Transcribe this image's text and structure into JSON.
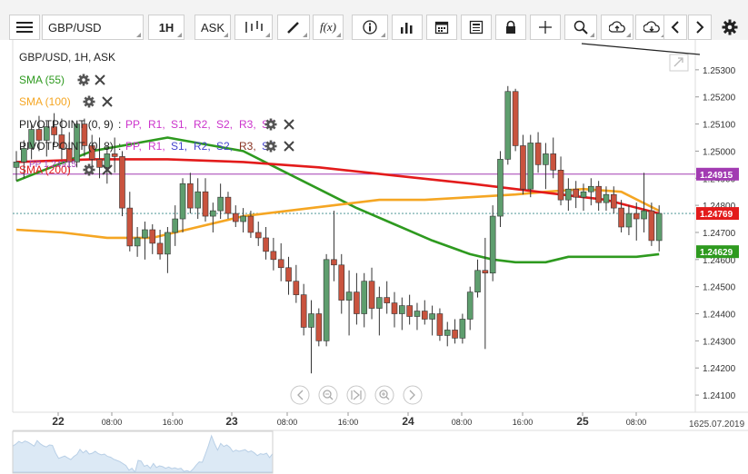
{
  "toolbar": {
    "menu_icon": "hamburger-menu-icon",
    "symbol": "GBP/USD",
    "timeframe": "1H",
    "price_side": "ASK",
    "fx_label": "f(x)"
  },
  "chart_header": {
    "title": "GBP/USD, 1H, ASK"
  },
  "indicators": [
    {
      "label": "SMA (55)",
      "color": "#2e9a1f"
    },
    {
      "label": "SMA (100)",
      "color": "#f5a623"
    },
    {
      "label": "PIVOTPOINT (0, 9)",
      "color": "#222222",
      "params": [
        {
          "t": "PP,",
          "c": "#cc33cc"
        },
        {
          "t": "R1,",
          "c": "#cc33cc"
        },
        {
          "t": "S1,",
          "c": "#cc33cc"
        },
        {
          "t": "R2,",
          "c": "#cc33cc"
        },
        {
          "t": "S2,",
          "c": "#cc33cc"
        },
        {
          "t": "R3,",
          "c": "#cc33cc"
        },
        {
          "t": "S3",
          "c": "#cc33cc"
        }
      ]
    },
    {
      "label": "PIVOTPOINT (0, 8)",
      "color": "#222222",
      "params": [
        {
          "t": "PP,",
          "c": "#cc33cc"
        },
        {
          "t": "R1,",
          "c": "#cc33cc"
        },
        {
          "t": "S1,",
          "c": "#4444cc"
        },
        {
          "t": "R2,",
          "c": "#4444cc"
        },
        {
          "t": "S2,",
          "c": "#4444cc"
        },
        {
          "t": "R3,",
          "c": "#883322"
        },
        {
          "t": "S3",
          "c": "#4444cc"
        }
      ]
    },
    {
      "label": "SMA (200)",
      "color": "#e31b1b"
    }
  ],
  "pivot_label": "PP 1.24915",
  "price_badges": [
    {
      "value": "1.24915",
      "bg": "#a23bb2"
    },
    {
      "value": "1.24769",
      "bg": "#e31b1b"
    },
    {
      "value": "1.24629",
      "bg": "#2e9a1f"
    }
  ],
  "x_end_label": "1625.07.2019",
  "chart_data": {
    "type": "candlestick",
    "title": "GBP/USD, 1H, ASK",
    "ylim": [
      1.2405,
      1.2539
    ],
    "y_ticks": [
      "1.25300",
      "1.25200",
      "1.25100",
      "1.25000",
      "1.24900",
      "1.24800",
      "1.24700",
      "1.24600",
      "1.24500",
      "1.24400",
      "1.24300",
      "1.24200",
      "1.24100"
    ],
    "x_ticks": [
      "22",
      "08:00",
      "16:00",
      "23",
      "08:00",
      "16:00",
      "24",
      "08:00",
      "16:00",
      "25",
      "08:00"
    ],
    "pivot_pp": 1.24915,
    "ohlc": [
      [
        1.2494,
        1.25,
        1.2489,
        1.2496
      ],
      [
        1.2496,
        1.2504,
        1.249,
        1.2501
      ],
      [
        1.2501,
        1.251,
        1.2497,
        1.2508
      ],
      [
        1.2508,
        1.2513,
        1.25,
        1.2504
      ],
      [
        1.2504,
        1.2511,
        1.2498,
        1.2509
      ],
      [
        1.2509,
        1.2514,
        1.2502,
        1.2506
      ],
      [
        1.2506,
        1.2512,
        1.2497,
        1.2501
      ],
      [
        1.2501,
        1.2507,
        1.2492,
        1.2496
      ],
      [
        1.2496,
        1.2511,
        1.2494,
        1.251
      ],
      [
        1.251,
        1.2512,
        1.2498,
        1.2502
      ],
      [
        1.2502,
        1.2506,
        1.2494,
        1.2497
      ],
      [
        1.2497,
        1.2505,
        1.249,
        1.2494
      ],
      [
        1.2494,
        1.2502,
        1.2488,
        1.2499
      ],
      [
        1.2499,
        1.2505,
        1.2492,
        1.2498
      ],
      [
        1.2498,
        1.25,
        1.2476,
        1.2479
      ],
      [
        1.2479,
        1.2485,
        1.2463,
        1.2465
      ],
      [
        1.2465,
        1.2472,
        1.2461,
        1.2468
      ],
      [
        1.2468,
        1.2474,
        1.246,
        1.2471
      ],
      [
        1.2471,
        1.2473,
        1.2462,
        1.2466
      ],
      [
        1.2466,
        1.2471,
        1.246,
        1.2462
      ],
      [
        1.2462,
        1.2472,
        1.2455,
        1.247
      ],
      [
        1.247,
        1.248,
        1.2465,
        1.2475
      ],
      [
        1.2475,
        1.249,
        1.247,
        1.2488
      ],
      [
        1.2488,
        1.2492,
        1.2477,
        1.2479
      ],
      [
        1.2479,
        1.249,
        1.2475,
        1.2485
      ],
      [
        1.2485,
        1.249,
        1.2474,
        1.2476
      ],
      [
        1.2476,
        1.2481,
        1.247,
        1.2478
      ],
      [
        1.2478,
        1.2488,
        1.2475,
        1.2483
      ],
      [
        1.2483,
        1.2485,
        1.2475,
        1.2477
      ],
      [
        1.2477,
        1.248,
        1.2472,
        1.2474
      ],
      [
        1.2474,
        1.2479,
        1.247,
        1.2476
      ],
      [
        1.2476,
        1.2478,
        1.2468,
        1.247
      ],
      [
        1.247,
        1.2474,
        1.2465,
        1.2468
      ],
      [
        1.2468,
        1.2472,
        1.246,
        1.2463
      ],
      [
        1.2463,
        1.2468,
        1.2456,
        1.246
      ],
      [
        1.246,
        1.2466,
        1.2452,
        1.2457
      ],
      [
        1.2457,
        1.2461,
        1.2447,
        1.2452
      ],
      [
        1.2452,
        1.2458,
        1.2444,
        1.2447
      ],
      [
        1.2447,
        1.2451,
        1.2432,
        1.2435
      ],
      [
        1.2435,
        1.2445,
        1.2418,
        1.244
      ],
      [
        1.244,
        1.2442,
        1.2428,
        1.243
      ],
      [
        1.243,
        1.2462,
        1.2428,
        1.246
      ],
      [
        1.246,
        1.2478,
        1.2452,
        1.2458
      ],
      [
        1.2458,
        1.2462,
        1.244,
        1.2445
      ],
      [
        1.2445,
        1.2456,
        1.2432,
        1.2448
      ],
      [
        1.2448,
        1.2455,
        1.2436,
        1.244
      ],
      [
        1.244,
        1.2455,
        1.2435,
        1.2452
      ],
      [
        1.2452,
        1.2457,
        1.2438,
        1.2442
      ],
      [
        1.2442,
        1.245,
        1.2432,
        1.2446
      ],
      [
        1.2446,
        1.2452,
        1.244,
        1.2444
      ],
      [
        1.2444,
        1.2448,
        1.2435,
        1.244
      ],
      [
        1.244,
        1.2446,
        1.2434,
        1.2443
      ],
      [
        1.2443,
        1.2447,
        1.2436,
        1.2439
      ],
      [
        1.2439,
        1.2444,
        1.2434,
        1.2441
      ],
      [
        1.2441,
        1.2445,
        1.2436,
        1.2438
      ],
      [
        1.2438,
        1.2443,
        1.2432,
        1.244
      ],
      [
        1.244,
        1.2442,
        1.243,
        1.2432
      ],
      [
        1.2432,
        1.2437,
        1.2428,
        1.2434
      ],
      [
        1.2434,
        1.2438,
        1.2429,
        1.2431
      ],
      [
        1.2431,
        1.244,
        1.2429,
        1.2438
      ],
      [
        1.2438,
        1.245,
        1.2434,
        1.2448
      ],
      [
        1.2448,
        1.246,
        1.2446,
        1.2456
      ],
      [
        1.2456,
        1.2468,
        1.2427,
        1.2455
      ],
      [
        1.2455,
        1.248,
        1.2452,
        1.2476
      ],
      [
        1.2476,
        1.25,
        1.2472,
        1.2497
      ],
      [
        1.2497,
        1.2524,
        1.2495,
        1.2522
      ],
      [
        1.2522,
        1.2523,
        1.25,
        1.2502
      ],
      [
        1.2502,
        1.2506,
        1.2484,
        1.2486
      ],
      [
        1.2486,
        1.2506,
        1.2483,
        1.2503
      ],
      [
        1.2503,
        1.2507,
        1.2492,
        1.2495
      ],
      [
        1.2495,
        1.2503,
        1.2486,
        1.2499
      ],
      [
        1.2499,
        1.2505,
        1.249,
        1.2493
      ],
      [
        1.2493,
        1.2498,
        1.248,
        1.2482
      ],
      [
        1.2482,
        1.249,
        1.2478,
        1.2486
      ],
      [
        1.2486,
        1.2489,
        1.2479,
        1.2483
      ],
      [
        1.2483,
        1.2488,
        1.2478,
        1.2485
      ],
      [
        1.2485,
        1.249,
        1.248,
        1.2487
      ],
      [
        1.2487,
        1.2489,
        1.2478,
        1.2481
      ],
      [
        1.2481,
        1.2487,
        1.2478,
        1.2484
      ],
      [
        1.2484,
        1.2487,
        1.2477,
        1.2479
      ],
      [
        1.2479,
        1.2482,
        1.247,
        1.2472
      ],
      [
        1.2472,
        1.248,
        1.2469,
        1.2477
      ],
      [
        1.2477,
        1.2481,
        1.2467,
        1.2475
      ],
      [
        1.2475,
        1.2492,
        1.247,
        1.2478
      ],
      [
        1.2478,
        1.2481,
        1.2465,
        1.2467
      ],
      [
        1.2467,
        1.248,
        1.2463,
        1.2477
      ]
    ],
    "series": [
      {
        "name": "SMA (55)",
        "color": "#2e9a1f",
        "values": [
          [
            0,
            1.2489
          ],
          [
            10,
            1.25
          ],
          [
            20,
            1.2505
          ],
          [
            30,
            1.25
          ],
          [
            35,
            1.2493
          ],
          [
            40,
            1.2486
          ],
          [
            45,
            1.2479
          ],
          [
            50,
            1.2473
          ],
          [
            55,
            1.2467
          ],
          [
            60,
            1.2462
          ],
          [
            63,
            1.246
          ],
          [
            66,
            1.2459
          ],
          [
            70,
            1.2459
          ],
          [
            73,
            1.2461
          ],
          [
            78,
            1.2461
          ],
          [
            82,
            1.2461
          ],
          [
            85,
            1.2462
          ]
        ]
      },
      {
        "name": "SMA (100)",
        "color": "#f5a623",
        "values": [
          [
            0,
            1.2471
          ],
          [
            6,
            1.247
          ],
          [
            12,
            1.2468
          ],
          [
            18,
            1.2468
          ],
          [
            24,
            1.2472
          ],
          [
            30,
            1.2476
          ],
          [
            36,
            1.2478
          ],
          [
            42,
            1.248
          ],
          [
            48,
            1.2482
          ],
          [
            54,
            1.2482
          ],
          [
            60,
            1.2483
          ],
          [
            66,
            1.2484
          ],
          [
            70,
            1.2485
          ],
          [
            75,
            1.2486
          ],
          [
            80,
            1.2485
          ],
          [
            85,
            1.2478
          ]
        ]
      },
      {
        "name": "SMA (200)",
        "color": "#e31b1b",
        "values": [
          [
            0,
            1.2496
          ],
          [
            10,
            1.2497
          ],
          [
            20,
            1.2497
          ],
          [
            30,
            1.2496
          ],
          [
            40,
            1.2494
          ],
          [
            50,
            1.2491
          ],
          [
            60,
            1.2488
          ],
          [
            66,
            1.2486
          ],
          [
            72,
            1.2484
          ],
          [
            78,
            1.2482
          ],
          [
            85,
            1.2477
          ]
        ]
      }
    ]
  }
}
